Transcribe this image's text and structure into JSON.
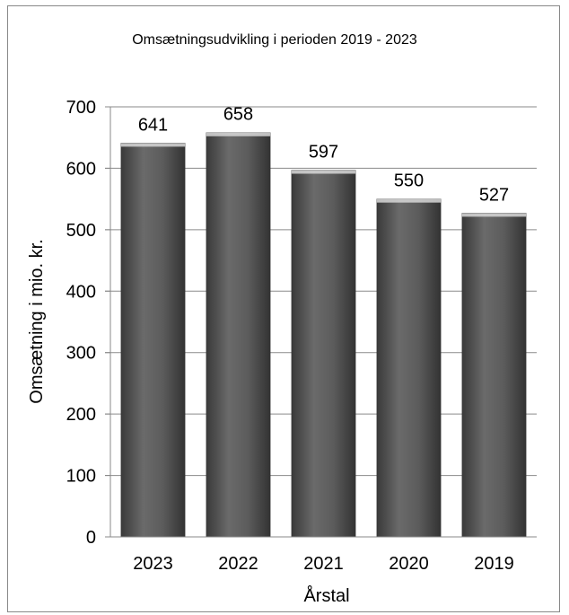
{
  "chart_data": {
    "type": "bar",
    "title": "Omsætningsudvikling i perioden 2019 - 2023",
    "xlabel": "Årstal",
    "ylabel": "Omsætning i mio. kr.",
    "categories": [
      "2023",
      "2022",
      "2021",
      "2020",
      "2019"
    ],
    "values": [
      641,
      658,
      597,
      550,
      527
    ],
    "data_labels": [
      "641",
      "658",
      "597",
      "550",
      "527"
    ],
    "ylim": [
      0,
      700
    ],
    "yticks": [
      "0",
      "100",
      "200",
      "300",
      "400",
      "500",
      "600",
      "700"
    ],
    "grid": true,
    "legend": "none",
    "bar_color": "#555555"
  }
}
